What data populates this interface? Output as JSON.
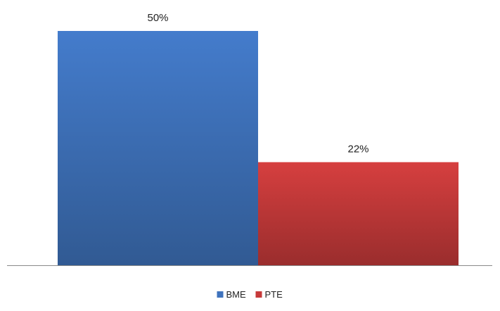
{
  "chart_data": {
    "type": "bar",
    "categories": [
      ""
    ],
    "series": [
      {
        "name": "BME",
        "values": [
          50
        ],
        "label": "50%",
        "color": "#3f73bd"
      },
      {
        "name": "PTE",
        "values": [
          22
        ],
        "label": "22%",
        "color": "#c63a3a"
      }
    ],
    "value_unit": "%",
    "ylim": [
      0,
      50
    ],
    "grid": false,
    "legend_position": "bottom"
  }
}
